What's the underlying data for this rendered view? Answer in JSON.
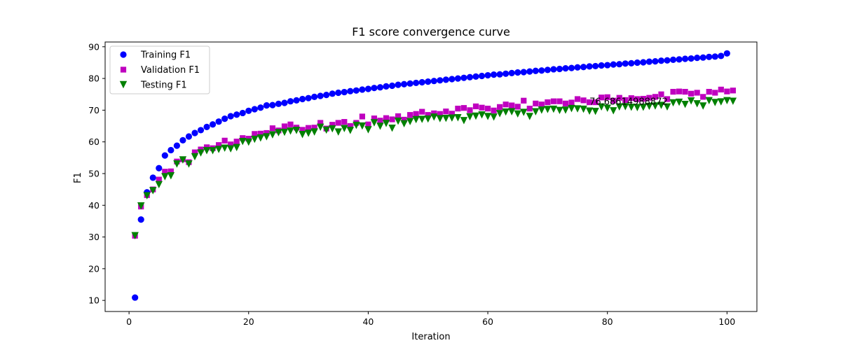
{
  "chart_data": {
    "type": "scatter",
    "title": "F1 score convergence curve",
    "xlabel": "Iteration",
    "ylabel": "F1",
    "xlim": [
      -4,
      105
    ],
    "ylim": [
      6.5,
      91.5
    ],
    "xticks": [
      0,
      20,
      40,
      60,
      80,
      100
    ],
    "yticks": [
      10,
      20,
      30,
      40,
      50,
      60,
      70,
      80,
      90
    ],
    "legend_position": "top-left",
    "annotation": {
      "text": "76.68614988872",
      "x": 77,
      "y": 72.6
    },
    "series": [
      {
        "name": "Training F1",
        "marker": "circle",
        "color": "#0000ff",
        "values": [
          10.9,
          35.5,
          44.1,
          48.7,
          51.7,
          55.7,
          57.4,
          58.8,
          60.5,
          61.7,
          62.8,
          63.7,
          64.7,
          65.5,
          66.4,
          67.3,
          68.1,
          68.6,
          69.1,
          69.8,
          70.3,
          70.8,
          71.5,
          71.6,
          72.0,
          72.3,
          72.8,
          73.1,
          73.5,
          73.8,
          74.2,
          74.5,
          74.8,
          75.2,
          75.5,
          75.7,
          76.0,
          76.2,
          76.5,
          76.7,
          77.0,
          77.2,
          77.5,
          77.7,
          78.0,
          78.2,
          78.4,
          78.6,
          78.8,
          79.0,
          79.2,
          79.4,
          79.6,
          79.8,
          80.0,
          80.2,
          80.4,
          80.6,
          80.8,
          81.0,
          81.2,
          81.3,
          81.5,
          81.7,
          81.9,
          82.0,
          82.2,
          82.4,
          82.5,
          82.7,
          82.9,
          83.0,
          83.2,
          83.3,
          83.5,
          83.6,
          83.8,
          83.9,
          84.1,
          84.2,
          84.4,
          84.5,
          84.7,
          84.8,
          85.0,
          85.1,
          85.3,
          85.4,
          85.6,
          85.7,
          85.9,
          86.0,
          86.2,
          86.3,
          86.5,
          86.6,
          86.8,
          86.9,
          87.1,
          87.9
        ]
      },
      {
        "name": "Validation F1",
        "marker": "square",
        "color": "#bf00bf",
        "values": [
          30.4,
          39.6,
          43.2,
          45.0,
          48.1,
          50.6,
          50.7,
          53.8,
          54.5,
          53.6,
          56.7,
          57.6,
          58.3,
          58.0,
          59.0,
          60.4,
          59.2,
          60.1,
          61.2,
          61.0,
          62.5,
          62.6,
          62.8,
          64.3,
          63.6,
          64.9,
          65.5,
          64.5,
          63.8,
          64.4,
          64.5,
          66.0,
          64.2,
          65.4,
          66.0,
          66.3,
          65.0,
          66.0,
          68.0,
          65.5,
          67.4,
          66.7,
          67.5,
          67.1,
          68.1,
          67.0,
          68.5,
          68.8,
          69.5,
          68.5,
          69.0,
          68.8,
          69.6,
          68.9,
          70.5,
          70.7,
          70.0,
          71.2,
          70.8,
          70.5,
          69.9,
          71.0,
          71.8,
          71.5,
          71.1,
          73.0,
          70.5,
          72.1,
          71.8,
          72.5,
          72.8,
          72.8,
          72.1,
          72.4,
          73.5,
          73.1,
          72.5,
          72.5,
          74.0,
          74.1,
          73.0,
          73.9,
          73.2,
          73.8,
          73.5,
          73.6,
          73.9,
          74.2,
          75.0,
          73.5,
          75.8,
          75.9,
          75.8,
          75.2,
          75.5,
          74.2,
          75.8,
          75.5,
          76.5,
          75.9,
          76.2
        ]
      },
      {
        "name": "Testing F1",
        "marker": "triangle-down",
        "color": "#008000",
        "values": [
          30.4,
          39.8,
          43.0,
          44.6,
          46.5,
          49.0,
          49.3,
          53.0,
          54.3,
          53.0,
          55.3,
          56.5,
          57.2,
          57.2,
          57.6,
          58.0,
          57.8,
          58.2,
          60.1,
          59.9,
          60.8,
          61.2,
          61.6,
          62.2,
          62.9,
          63.0,
          63.4,
          63.6,
          62.3,
          62.7,
          63.1,
          64.6,
          63.7,
          64.1,
          63.1,
          64.2,
          63.6,
          65.2,
          65.0,
          63.8,
          66.0,
          64.9,
          65.8,
          64.3,
          66.5,
          65.7,
          66.4,
          67.0,
          67.1,
          67.2,
          67.8,
          67.3,
          67.4,
          67.5,
          67.6,
          66.7,
          67.9,
          68.1,
          68.5,
          68.0,
          67.8,
          68.9,
          69.4,
          69.5,
          68.8,
          69.3,
          68.0,
          69.5,
          70.0,
          70.2,
          70.3,
          69.9,
          70.0,
          70.5,
          70.4,
          70.3,
          69.7,
          69.6,
          71.0,
          70.6,
          69.8,
          71.0,
          71.1,
          70.9,
          70.8,
          70.9,
          71.2,
          71.3,
          71.5,
          71.0,
          72.3,
          72.5,
          71.8,
          72.9,
          72.0,
          71.3,
          73.0,
          72.4,
          72.6,
          73.0,
          72.8
        ]
      }
    ]
  }
}
